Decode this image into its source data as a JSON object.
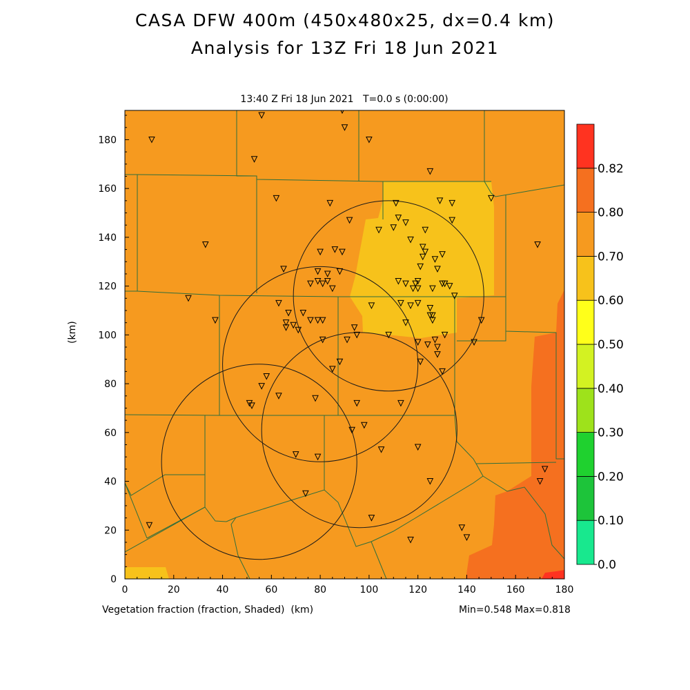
{
  "header": {
    "title_line1": "CASA DFW 400m (450x480x25, dx=0.4 km)",
    "title_line2": "Analysis for 13Z Fri 18 Jun 2021",
    "subtitle": "13:40 Z Fri 18 Jun 2021   T=0.0 s (0:00:00)"
  },
  "footer": {
    "field_label": "Vegetation fraction (fraction, Shaded)  (km)",
    "min_max": "Min=0.548 Max=0.818"
  },
  "axes": {
    "y_label": "(km)",
    "x_ticks": [
      "0",
      "20",
      "40",
      "60",
      "80",
      "100",
      "120",
      "140",
      "160",
      "180"
    ],
    "y_ticks": [
      "0",
      "20",
      "40",
      "60",
      "80",
      "100",
      "120",
      "140",
      "160",
      "180"
    ],
    "x_range": [
      0,
      180
    ],
    "y_range": [
      0,
      192
    ]
  },
  "colorbar": {
    "labels": [
      "0.0",
      "0.10",
      "0.20",
      "0.30",
      "0.40",
      "0.50",
      "0.60",
      "0.70",
      "0.80",
      "0.82"
    ],
    "colors": [
      "#18e88e",
      "#1dc43a",
      "#1fd12f",
      "#9ee21b",
      "#d3f222",
      "#ffff1a",
      "#f7c21b",
      "#f69a1f",
      "#f5701f",
      "#ff3320"
    ]
  },
  "field_colors": {
    "base": "#f69a1f",
    "pale": "#f7c21b",
    "high": "#f5701f",
    "max": "#ff3320"
  },
  "radar_rings_km": [
    {
      "x": 108,
      "y": 116,
      "r": 39
    },
    {
      "x": 80,
      "y": 88,
      "r": 40
    },
    {
      "x": 96,
      "y": 61,
      "r": 40
    },
    {
      "x": 55,
      "y": 48,
      "r": 40
    }
  ],
  "stations_km": [
    [
      11,
      180
    ],
    [
      56,
      190
    ],
    [
      89,
      192
    ],
    [
      90,
      185
    ],
    [
      100,
      180
    ],
    [
      53,
      172
    ],
    [
      62,
      156
    ],
    [
      125,
      167
    ],
    [
      84,
      154
    ],
    [
      111,
      154
    ],
    [
      112,
      148
    ],
    [
      115,
      146
    ],
    [
      92,
      147
    ],
    [
      104,
      143
    ],
    [
      110,
      144
    ],
    [
      123,
      143
    ],
    [
      117,
      139
    ],
    [
      129,
      155
    ],
    [
      134,
      154
    ],
    [
      134,
      147
    ],
    [
      122,
      136
    ],
    [
      123,
      134
    ],
    [
      122,
      132
    ],
    [
      86,
      135
    ],
    [
      89,
      134
    ],
    [
      80,
      134
    ],
    [
      127,
      131
    ],
    [
      130,
      133
    ],
    [
      121,
      128
    ],
    [
      128,
      127
    ],
    [
      33,
      137
    ],
    [
      169,
      137
    ],
    [
      65,
      127
    ],
    [
      79,
      126
    ],
    [
      88,
      126
    ],
    [
      83,
      125
    ],
    [
      83,
      122
    ],
    [
      81,
      121
    ],
    [
      79,
      122
    ],
    [
      76,
      121
    ],
    [
      85,
      119
    ],
    [
      112,
      122
    ],
    [
      115,
      121
    ],
    [
      119,
      121
    ],
    [
      120,
      122
    ],
    [
      118,
      119
    ],
    [
      120,
      119
    ],
    [
      126,
      119
    ],
    [
      130,
      121
    ],
    [
      131,
      121
    ],
    [
      133,
      120
    ],
    [
      135,
      116
    ],
    [
      26,
      115
    ],
    [
      63,
      113
    ],
    [
      67,
      109
    ],
    [
      73,
      109
    ],
    [
      69,
      104
    ],
    [
      66,
      105
    ],
    [
      66,
      103
    ],
    [
      71,
      102
    ],
    [
      76,
      106
    ],
    [
      79,
      106
    ],
    [
      81,
      106
    ],
    [
      94,
      103
    ],
    [
      95,
      100
    ],
    [
      101,
      112
    ],
    [
      113,
      113
    ],
    [
      117,
      112
    ],
    [
      120,
      113
    ],
    [
      125,
      111
    ],
    [
      125,
      108
    ],
    [
      126,
      108
    ],
    [
      115,
      105
    ],
    [
      126,
      106
    ],
    [
      37,
      106
    ],
    [
      146,
      106
    ],
    [
      131,
      100
    ],
    [
      127,
      98
    ],
    [
      120,
      97
    ],
    [
      124,
      96
    ],
    [
      128,
      95
    ],
    [
      128,
      92
    ],
    [
      121,
      89
    ],
    [
      143,
      97
    ],
    [
      108,
      100
    ],
    [
      81,
      98
    ],
    [
      91,
      98
    ],
    [
      130,
      85
    ],
    [
      85,
      86
    ],
    [
      88,
      89
    ],
    [
      58,
      83
    ],
    [
      56,
      79
    ],
    [
      63,
      75
    ],
    [
      78,
      74
    ],
    [
      95,
      72
    ],
    [
      113,
      72
    ],
    [
      51,
      72
    ],
    [
      52,
      71
    ],
    [
      98,
      63
    ],
    [
      93,
      61
    ],
    [
      105,
      53
    ],
    [
      120,
      54
    ],
    [
      70,
      51
    ],
    [
      79,
      50
    ],
    [
      125,
      40
    ],
    [
      170,
      40
    ],
    [
      172,
      45
    ],
    [
      74,
      35
    ],
    [
      101,
      25
    ],
    [
      10,
      22
    ],
    [
      138,
      21
    ],
    [
      140,
      17
    ],
    [
      117,
      16
    ],
    [
      150,
      156
    ]
  ]
}
